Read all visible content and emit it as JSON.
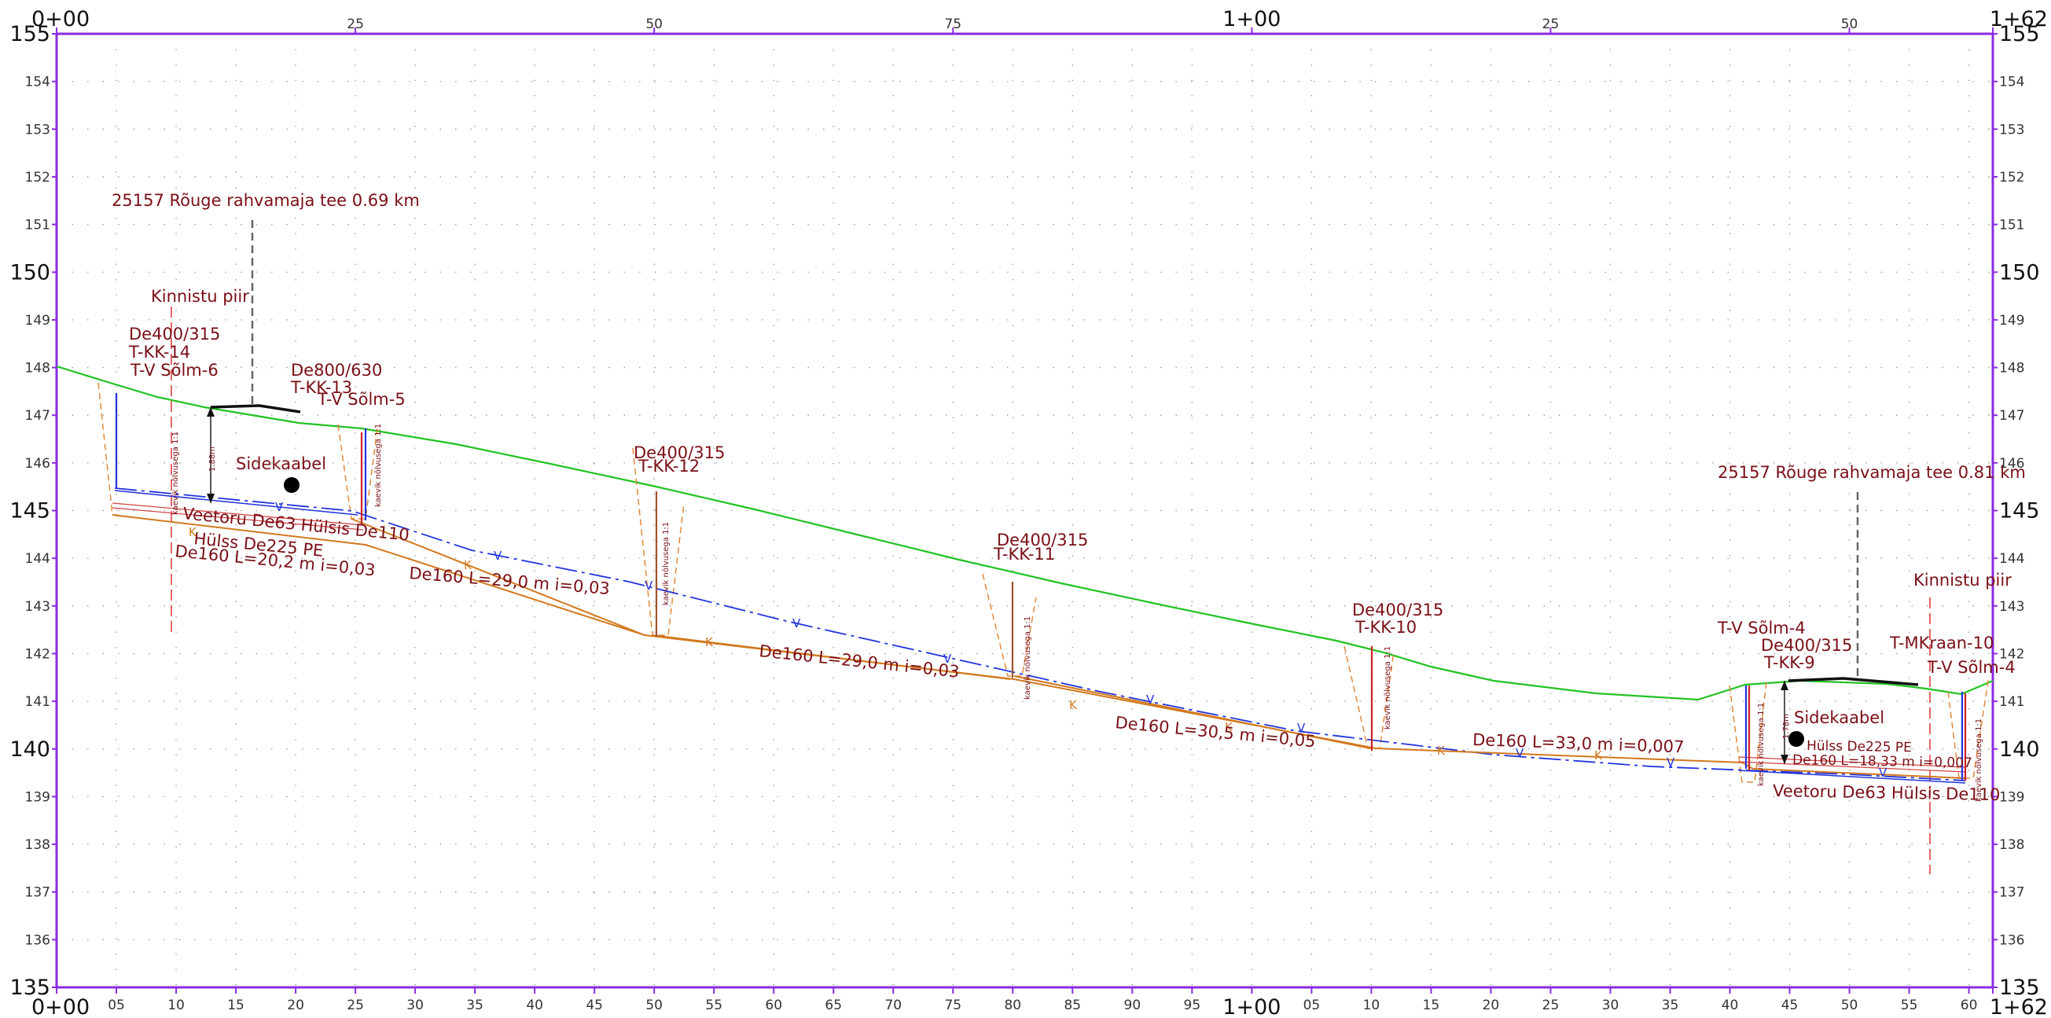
{
  "colors": {
    "frame": "#8b2be2",
    "grid": "#9a9a9a",
    "ground": "#22c322",
    "sewer": "#d2791e",
    "water": "#2233dd",
    "cable": "#cc2222",
    "label": "#7a0f16",
    "trench": "#e08a3a"
  },
  "axes": {
    "elev_left": [
      "155",
      "154",
      "153",
      "152",
      "151",
      "150",
      "149",
      "148",
      "147",
      "146",
      "145",
      "144",
      "143",
      "142",
      "141",
      "140",
      "139",
      "138",
      "137",
      "136",
      "135"
    ],
    "elev_right": [
      "155",
      "154",
      "153",
      "152",
      "151",
      "150",
      "149",
      "148",
      "147",
      "146",
      "145",
      "144",
      "143",
      "142",
      "141",
      "140",
      "139",
      "138",
      "137",
      "136",
      "135"
    ],
    "chain_top": [
      "0+00",
      "25",
      "50",
      "75",
      "1+00",
      "25",
      "50",
      "1+62"
    ],
    "chain_bottom": [
      "0+00",
      "05",
      "10",
      "15",
      "20",
      "25",
      "30",
      "35",
      "40",
      "45",
      "50",
      "55",
      "60",
      "65",
      "70",
      "75",
      "80",
      "85",
      "90",
      "95",
      "1+00",
      "05",
      "10",
      "15",
      "20",
      "25",
      "30",
      "35",
      "40",
      "45",
      "50",
      "55",
      "60",
      "1+62"
    ]
  },
  "road_labels": {
    "left": "25157 Rõuge rahvamaja tee  0.69 km",
    "right": "25157 Rõuge rahvamaja tee  0.81 km"
  },
  "boundary_labels": {
    "left": "Kinnistu piir",
    "right": "Kinnistu piir"
  },
  "wells": {
    "kk14_size": "De400/315",
    "kk14_id": "T-KK-14",
    "sv6": "T-V Sõlm-6",
    "kk13_size": "De800/630",
    "kk13_id": "T-KK-13",
    "sv5": "T-V Sõlm-5",
    "kk12_size": "De400/315",
    "kk12_id": "T-KK-12",
    "kk11_size": "De400/315",
    "kk11_id": "T-KK-11",
    "kk10_size": "De400/315",
    "kk10_id": "T-KK-10",
    "sv4a": "T-V Sõlm-4",
    "kk9_size": "De400/315",
    "kk9_id": "T-KK-9",
    "mk10": "T-MKraan-10",
    "sv4b": "T-V Sõlm-4"
  },
  "cable_labels": {
    "left": "Sidekaabel",
    "right": "Sidekaabel"
  },
  "pipe_labels": {
    "water_left": "Veetoru De63 Hülsis De110",
    "sleeve_left": "Hülss De225 PE",
    "seg1": "De160 L=20,2 m i=0,03",
    "seg2": "De160 L=29,0 m i=0,03",
    "seg3": "De160 L=29,0 m i=0,03",
    "seg4": "De160 L=30,5 m i=0,05",
    "seg5": "De160 L=33,0 m i=0,007",
    "sleeve_right": "Hülss De225 PE",
    "seg6": "De160 L=18,33 m i=0,007",
    "water_right": "Veetoru De63 Hülsis De110"
  },
  "depth_labels": {
    "left": "1.88m",
    "right": "1.78m"
  },
  "slope_note": "kaevik nõlvusega 1:1",
  "pipe_markers": {
    "sewer": "K",
    "water": "V"
  }
}
